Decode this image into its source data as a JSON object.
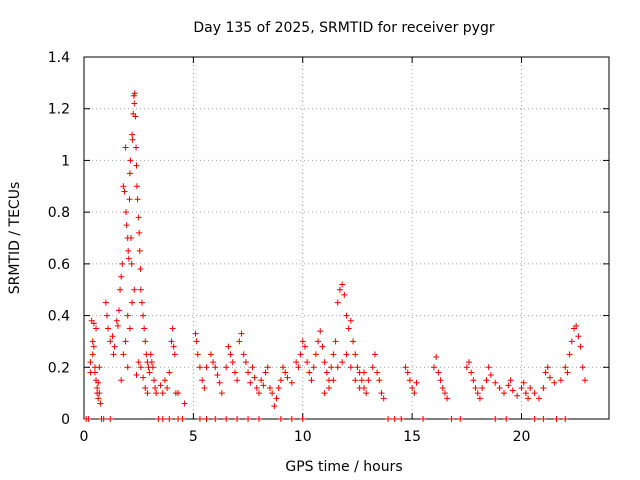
{
  "chart_data": {
    "type": "scatter",
    "title": "Day 135 of 2025, SRMTID for receiver pygr",
    "xlabel": "GPS time / hours",
    "ylabel": "SRMTID / TECUs",
    "xlim": [
      0,
      24
    ],
    "ylim": [
      0,
      1.4
    ],
    "xticks": [
      0,
      5,
      10,
      15,
      20
    ],
    "yticks": [
      0,
      0.2,
      0.4,
      0.6,
      0.8,
      1,
      1.2,
      1.4
    ],
    "xtick_labels": [
      "0",
      "5",
      "10",
      "15",
      "20"
    ],
    "ytick_labels": [
      "0",
      "0.2",
      "0.4",
      "0.6",
      "0.8",
      "1",
      "1.2",
      "1.4"
    ],
    "grid": true,
    "marker": "+",
    "series_color": "#ee0000",
    "series": [
      {
        "name": "SRMTID",
        "points": [
          [
            0.2,
            0.0
          ],
          [
            0.3,
            0.18
          ],
          [
            0.35,
            0.38
          ],
          [
            0.4,
            0.3
          ],
          [
            0.45,
            0.37
          ],
          [
            0.5,
            0.2
          ],
          [
            0.55,
            0.15
          ],
          [
            0.6,
            0.12
          ],
          [
            0.65,
            0.08
          ],
          [
            0.7,
            0.1
          ],
          [
            0.75,
            0.06
          ],
          [
            0.8,
            0.0
          ],
          [
            0.3,
            0.22
          ],
          [
            0.4,
            0.25
          ],
          [
            0.5,
            0.18
          ],
          [
            0.6,
            0.1
          ],
          [
            0.65,
            0.14
          ],
          [
            0.7,
            0.2
          ],
          [
            0.45,
            0.28
          ],
          [
            0.55,
            0.35
          ],
          [
            1.0,
            0.45
          ],
          [
            1.05,
            0.4
          ],
          [
            1.1,
            0.35
          ],
          [
            1.2,
            0.3
          ],
          [
            1.3,
            0.32
          ],
          [
            1.35,
            0.25
          ],
          [
            1.4,
            0.28
          ],
          [
            1.5,
            0.38
          ],
          [
            1.55,
            0.36
          ],
          [
            1.6,
            0.42
          ],
          [
            1.65,
            0.5
          ],
          [
            1.7,
            0.55
          ],
          [
            1.75,
            0.6
          ],
          [
            1.8,
            0.9
          ],
          [
            1.85,
            0.88
          ],
          [
            1.9,
            1.05
          ],
          [
            1.92,
            0.8
          ],
          [
            1.95,
            0.75
          ],
          [
            2.0,
            0.7
          ],
          [
            2.02,
            0.65
          ],
          [
            2.05,
            0.62
          ],
          [
            2.08,
            0.85
          ],
          [
            2.1,
            0.95
          ],
          [
            2.12,
            1.0
          ],
          [
            2.15,
            0.7
          ],
          [
            2.18,
            0.6
          ],
          [
            2.2,
            1.1
          ],
          [
            2.22,
            1.08
          ],
          [
            2.25,
            1.18
          ],
          [
            2.28,
            1.25
          ],
          [
            2.3,
            1.22
          ],
          [
            2.32,
            1.26
          ],
          [
            2.35,
            1.17
          ],
          [
            2.38,
            1.05
          ],
          [
            2.4,
            0.98
          ],
          [
            2.42,
            0.9
          ],
          [
            2.45,
            0.85
          ],
          [
            2.5,
            0.78
          ],
          [
            2.52,
            0.72
          ],
          [
            2.55,
            0.65
          ],
          [
            2.58,
            0.58
          ],
          [
            2.6,
            0.5
          ],
          [
            2.65,
            0.45
          ],
          [
            2.7,
            0.4
          ],
          [
            2.75,
            0.35
          ],
          [
            2.8,
            0.3
          ],
          [
            2.85,
            0.25
          ],
          [
            2.9,
            0.22
          ],
          [
            2.95,
            0.2
          ],
          [
            3.0,
            0.18
          ],
          [
            3.05,
            0.25
          ],
          [
            3.1,
            0.22
          ],
          [
            3.15,
            0.2
          ],
          [
            3.2,
            0.15
          ],
          [
            3.25,
            0.12
          ],
          [
            3.3,
            0.1
          ],
          [
            2.0,
            0.4
          ],
          [
            2.1,
            0.35
          ],
          [
            2.2,
            0.45
          ],
          [
            2.3,
            0.5
          ],
          [
            1.9,
            0.3
          ],
          [
            2.0,
            0.2
          ],
          [
            1.8,
            0.25
          ],
          [
            1.7,
            0.15
          ],
          [
            2.4,
            0.17
          ],
          [
            2.5,
            0.22
          ],
          [
            2.6,
            0.2
          ],
          [
            2.7,
            0.16
          ],
          [
            2.8,
            0.12
          ],
          [
            2.9,
            0.1
          ],
          [
            3.5,
            0.13
          ],
          [
            3.6,
            0.1
          ],
          [
            3.7,
            0.15
          ],
          [
            3.8,
            0.12
          ],
          [
            3.9,
            0.18
          ],
          [
            4.0,
            0.3
          ],
          [
            4.05,
            0.35
          ],
          [
            4.1,
            0.28
          ],
          [
            4.15,
            0.25
          ],
          [
            4.2,
            0.1
          ],
          [
            4.3,
            0.1
          ],
          [
            4.5,
            0.0
          ],
          [
            4.6,
            0.06
          ],
          [
            5.1,
            0.33
          ],
          [
            5.15,
            0.3
          ],
          [
            5.2,
            0.25
          ],
          [
            5.3,
            0.2
          ],
          [
            5.4,
            0.15
          ],
          [
            5.5,
            0.12
          ],
          [
            5.6,
            0.2
          ],
          [
            5.8,
            0.25
          ],
          [
            5.9,
            0.22
          ],
          [
            6.0,
            0.2
          ],
          [
            6.1,
            0.17
          ],
          [
            6.2,
            0.14
          ],
          [
            6.3,
            0.1
          ],
          [
            6.5,
            0.2
          ],
          [
            6.6,
            0.28
          ],
          [
            6.7,
            0.25
          ],
          [
            6.8,
            0.22
          ],
          [
            6.9,
            0.18
          ],
          [
            7.0,
            0.15
          ],
          [
            7.1,
            0.3
          ],
          [
            7.2,
            0.33
          ],
          [
            7.3,
            0.25
          ],
          [
            7.4,
            0.22
          ],
          [
            7.5,
            0.18
          ],
          [
            7.6,
            0.14
          ],
          [
            7.7,
            0.2
          ],
          [
            7.8,
            0.16
          ],
          [
            7.9,
            0.12
          ],
          [
            8.0,
            0.1
          ],
          [
            8.1,
            0.15
          ],
          [
            8.2,
            0.13
          ],
          [
            8.3,
            0.18
          ],
          [
            8.4,
            0.2
          ],
          [
            8.5,
            0.12
          ],
          [
            8.6,
            0.1
          ],
          [
            8.7,
            0.05
          ],
          [
            8.8,
            0.08
          ],
          [
            8.9,
            0.12
          ],
          [
            9.0,
            0.15
          ],
          [
            9.1,
            0.2
          ],
          [
            9.2,
            0.18
          ],
          [
            9.3,
            0.16
          ],
          [
            9.5,
            0.14
          ],
          [
            9.7,
            0.22
          ],
          [
            9.8,
            0.2
          ],
          [
            9.9,
            0.25
          ],
          [
            10.0,
            0.3
          ],
          [
            10.1,
            0.28
          ],
          [
            10.2,
            0.22
          ],
          [
            10.3,
            0.18
          ],
          [
            10.4,
            0.15
          ],
          [
            10.5,
            0.2
          ],
          [
            10.6,
            0.25
          ],
          [
            10.7,
            0.3
          ],
          [
            10.8,
            0.34
          ],
          [
            10.9,
            0.28
          ],
          [
            11.0,
            0.22
          ],
          [
            11.1,
            0.18
          ],
          [
            11.2,
            0.15
          ],
          [
            11.3,
            0.2
          ],
          [
            11.4,
            0.25
          ],
          [
            11.5,
            0.3
          ],
          [
            11.6,
            0.45
          ],
          [
            11.7,
            0.5
          ],
          [
            11.8,
            0.52
          ],
          [
            11.9,
            0.48
          ],
          [
            12.0,
            0.4
          ],
          [
            12.1,
            0.35
          ],
          [
            12.2,
            0.38
          ],
          [
            12.3,
            0.3
          ],
          [
            12.4,
            0.25
          ],
          [
            12.5,
            0.2
          ],
          [
            12.6,
            0.18
          ],
          [
            12.7,
            0.15
          ],
          [
            12.8,
            0.12
          ],
          [
            12.9,
            0.1
          ],
          [
            13.0,
            0.15
          ],
          [
            11.0,
            0.1
          ],
          [
            11.2,
            0.12
          ],
          [
            11.4,
            0.15
          ],
          [
            11.6,
            0.2
          ],
          [
            11.8,
            0.22
          ],
          [
            12.0,
            0.25
          ],
          [
            12.2,
            0.2
          ],
          [
            12.4,
            0.15
          ],
          [
            12.6,
            0.12
          ],
          [
            12.8,
            0.18
          ],
          [
            13.2,
            0.2
          ],
          [
            13.3,
            0.25
          ],
          [
            13.4,
            0.18
          ],
          [
            13.5,
            0.15
          ],
          [
            13.6,
            0.1
          ],
          [
            13.7,
            0.08
          ],
          [
            14.7,
            0.2
          ],
          [
            14.8,
            0.18
          ],
          [
            14.9,
            0.15
          ],
          [
            15.0,
            0.12
          ],
          [
            15.1,
            0.1
          ],
          [
            15.2,
            0.14
          ],
          [
            16.0,
            0.2
          ],
          [
            16.1,
            0.24
          ],
          [
            16.2,
            0.18
          ],
          [
            16.3,
            0.15
          ],
          [
            16.4,
            0.12
          ],
          [
            16.5,
            0.1
          ],
          [
            16.6,
            0.08
          ],
          [
            17.5,
            0.2
          ],
          [
            17.6,
            0.22
          ],
          [
            17.7,
            0.18
          ],
          [
            17.8,
            0.15
          ],
          [
            17.9,
            0.12
          ],
          [
            18.0,
            0.1
          ],
          [
            18.1,
            0.08
          ],
          [
            18.2,
            0.12
          ],
          [
            18.4,
            0.15
          ],
          [
            18.5,
            0.2
          ],
          [
            18.6,
            0.17
          ],
          [
            18.8,
            0.14
          ],
          [
            19.0,
            0.12
          ],
          [
            19.2,
            0.1
          ],
          [
            19.4,
            0.13
          ],
          [
            19.5,
            0.15
          ],
          [
            19.6,
            0.11
          ],
          [
            19.8,
            0.09
          ],
          [
            20.0,
            0.12
          ],
          [
            20.1,
            0.14
          ],
          [
            20.2,
            0.1
          ],
          [
            20.3,
            0.08
          ],
          [
            20.4,
            0.12
          ],
          [
            20.6,
            0.1
          ],
          [
            20.8,
            0.08
          ],
          [
            21.0,
            0.12
          ],
          [
            21.1,
            0.18
          ],
          [
            21.2,
            0.2
          ],
          [
            21.3,
            0.16
          ],
          [
            21.5,
            0.14
          ],
          [
            21.8,
            0.15
          ],
          [
            22.0,
            0.2
          ],
          [
            22.1,
            0.18
          ],
          [
            22.2,
            0.25
          ],
          [
            22.3,
            0.3
          ],
          [
            22.4,
            0.35
          ],
          [
            22.5,
            0.36
          ],
          [
            22.6,
            0.32
          ],
          [
            22.7,
            0.28
          ],
          [
            22.8,
            0.2
          ],
          [
            22.9,
            0.15
          ],
          [
            0.1,
            0.0
          ],
          [
            0.9,
            0.0
          ],
          [
            1.2,
            0.0
          ],
          [
            3.4,
            0.0
          ],
          [
            3.6,
            0.0
          ],
          [
            3.9,
            0.0
          ],
          [
            4.3,
            0.0
          ],
          [
            5.3,
            0.0
          ],
          [
            5.6,
            0.0
          ],
          [
            6.0,
            0.0
          ],
          [
            6.5,
            0.0
          ],
          [
            7.0,
            0.0
          ],
          [
            7.5,
            0.0
          ],
          [
            8.0,
            0.0
          ],
          [
            9.0,
            0.0
          ],
          [
            9.5,
            0.0
          ],
          [
            10.0,
            0.0
          ],
          [
            13.9,
            0.0
          ],
          [
            14.2,
            0.0
          ],
          [
            14.5,
            0.0
          ],
          [
            15.5,
            0.0
          ],
          [
            16.8,
            0.0
          ],
          [
            17.2,
            0.0
          ],
          [
            18.8,
            0.0
          ],
          [
            19.3,
            0.0
          ],
          [
            20.6,
            0.0
          ],
          [
            21.0,
            0.0
          ],
          [
            21.6,
            0.0
          ],
          [
            22.0,
            0.0
          ]
        ]
      }
    ]
  }
}
